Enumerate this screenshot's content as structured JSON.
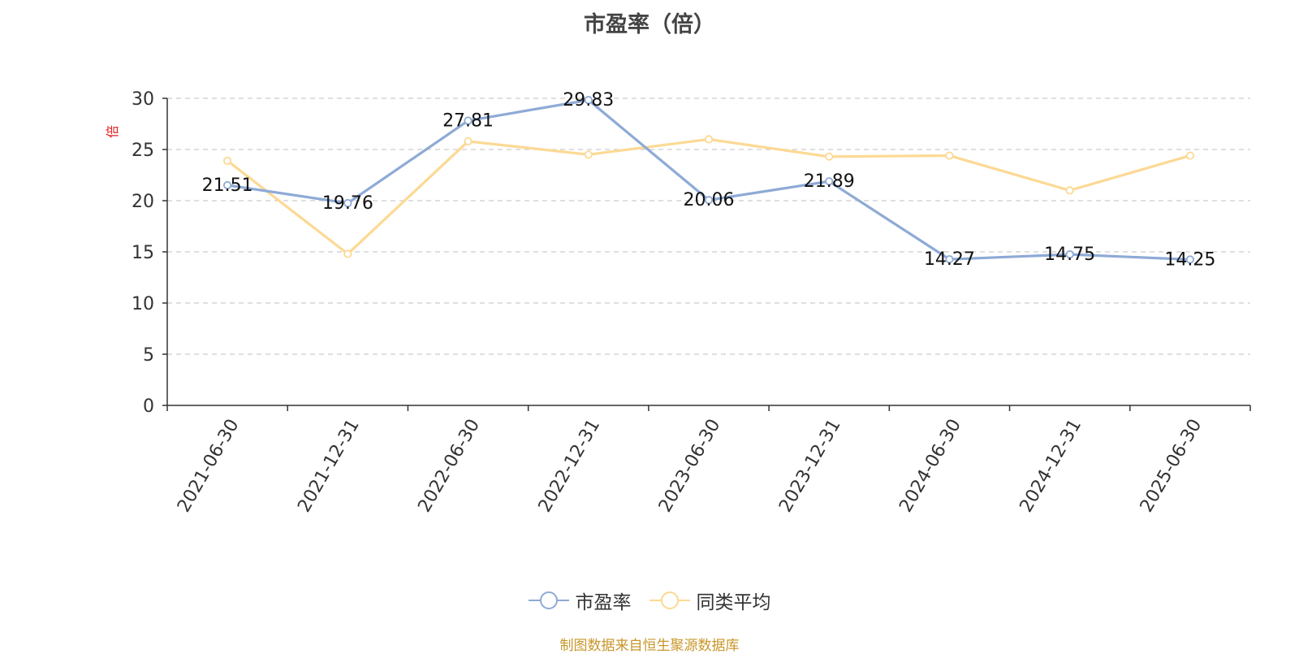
{
  "title": "市盈率（倍）",
  "source_note": "制图数据来自恒生聚源数据库",
  "colors": {
    "series_pe": "#8eaad6",
    "series_avg": "#fcd994",
    "unit_label": "#e02020",
    "source_note": "#c8962a",
    "grid": "#cccccc",
    "axis": "#333333"
  },
  "chart_data": {
    "type": "line",
    "title": "市盈率（倍）",
    "ylabel": "倍",
    "xlabel": "",
    "categories": [
      "2021-06-30",
      "2021-12-31",
      "2022-06-30",
      "2022-12-31",
      "2023-06-30",
      "2023-12-31",
      "2024-06-30",
      "2024-12-31",
      "2025-06-30"
    ],
    "ylim": [
      0,
      30
    ],
    "yticks": [
      "0",
      "5",
      "10",
      "15",
      "20",
      "25",
      "30"
    ],
    "grid": true,
    "grid_style": "dashed",
    "legend_position": "bottom",
    "series": [
      {
        "name": "市盈率",
        "values": [
          21.51,
          19.76,
          27.81,
          29.83,
          20.06,
          21.89,
          14.27,
          14.75,
          14.25
        ],
        "labels": [
          "21.51",
          "19.76",
          "27.81",
          "29.83",
          "20.06",
          "21.89",
          "14.27",
          "14.75",
          "14.25"
        ]
      },
      {
        "name": "同类平均",
        "values": [
          23.9,
          14.8,
          25.8,
          24.5,
          26.0,
          24.3,
          24.4,
          21.0,
          24.4
        ]
      }
    ]
  }
}
